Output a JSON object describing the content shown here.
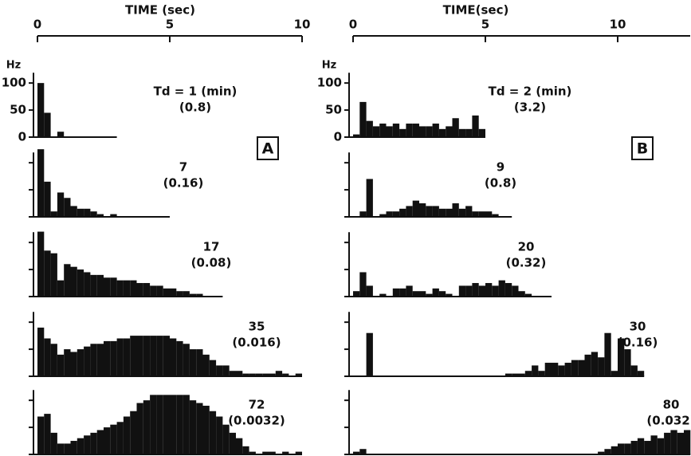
{
  "chart_data": [
    {
      "type": "histogram",
      "panel": "A",
      "xlabel": "TIME (sec)",
      "xlim": [
        0,
        10
      ],
      "xticks": [
        0,
        5,
        10
      ],
      "ylabel": "Hz",
      "ylim": [
        0,
        140
      ],
      "yticks": [
        0,
        50,
        100
      ],
      "color": "#111111",
      "annotation": [
        "Td = 1 (min)",
        "(0.8)"
      ],
      "bins": [
        0,
        0.25,
        0.5,
        0.75,
        1,
        1.25,
        1.5,
        1.75,
        2,
        2.25,
        2.5,
        2.75,
        3
      ],
      "values": [
        100,
        45,
        0,
        10,
        0,
        0,
        0,
        0,
        0,
        0,
        0,
        0
      ]
    },
    {
      "type": "histogram",
      "ylim": [
        0,
        140
      ],
      "color": "#111111",
      "annotation": [
        "7",
        "(0.16)"
      ],
      "bins": [
        0,
        0.25,
        0.5,
        0.75,
        1,
        1.25,
        1.5,
        1.75,
        2,
        2.25,
        2.5,
        2.75,
        3,
        3.25,
        3.5,
        3.75,
        4,
        4.25,
        4.5,
        4.75,
        5
      ],
      "values": [
        125,
        65,
        10,
        45,
        35,
        20,
        15,
        15,
        10,
        5,
        0,
        5,
        0,
        0,
        0,
        0,
        0,
        0,
        0,
        0
      ]
    },
    {
      "type": "histogram",
      "ylim": [
        0,
        140
      ],
      "color": "#111111",
      "annotation": [
        "17",
        "(0.08)"
      ],
      "bins": [
        0,
        0.25,
        0.5,
        0.75,
        1,
        1.25,
        1.5,
        1.75,
        2,
        2.25,
        2.5,
        2.75,
        3,
        3.25,
        3.5,
        3.75,
        4,
        4.25,
        4.5,
        4.75,
        5,
        5.25,
        5.5,
        5.75,
        6,
        6.25,
        6.5,
        6.75,
        7
      ],
      "values": [
        120,
        85,
        80,
        30,
        60,
        55,
        50,
        45,
        40,
        40,
        35,
        35,
        30,
        30,
        30,
        25,
        25,
        20,
        20,
        15,
        15,
        10,
        10,
        5,
        5,
        0,
        0,
        0
      ]
    },
    {
      "type": "histogram",
      "ylim": [
        0,
        140
      ],
      "color": "#111111",
      "annotation": [
        "35",
        "(0.016)"
      ],
      "bins": [
        0,
        0.25,
        0.5,
        0.75,
        1,
        1.25,
        1.5,
        1.75,
        2,
        2.25,
        2.5,
        2.75,
        3,
        3.25,
        3.5,
        3.75,
        4,
        4.25,
        4.5,
        4.75,
        5,
        5.25,
        5.5,
        5.75,
        6,
        6.25,
        6.5,
        6.75,
        7,
        7.25,
        7.5,
        7.75,
        8,
        8.25,
        8.5,
        8.75,
        9,
        9.25,
        9.5,
        9.75,
        10
      ],
      "values": [
        90,
        70,
        60,
        40,
        50,
        45,
        50,
        55,
        60,
        60,
        65,
        65,
        70,
        70,
        75,
        75,
        75,
        75,
        75,
        75,
        70,
        65,
        60,
        50,
        50,
        40,
        30,
        20,
        20,
        10,
        10,
        5,
        5,
        5,
        5,
        5,
        10,
        5,
        0,
        5
      ]
    },
    {
      "type": "histogram",
      "ylim": [
        0,
        140
      ],
      "color": "#111111",
      "annotation": [
        "72",
        "(0.0032)"
      ],
      "bins": [
        0,
        0.25,
        0.5,
        0.75,
        1,
        1.25,
        1.5,
        1.75,
        2,
        2.25,
        2.5,
        2.75,
        3,
        3.25,
        3.5,
        3.75,
        4,
        4.25,
        4.5,
        4.75,
        5,
        5.25,
        5.5,
        5.75,
        6,
        6.25,
        6.5,
        6.75,
        7,
        7.25,
        7.5,
        7.75,
        8,
        8.25,
        8.5,
        8.75,
        9,
        9.25,
        9.5,
        9.75,
        10
      ],
      "values": [
        70,
        75,
        40,
        20,
        20,
        25,
        30,
        35,
        40,
        45,
        50,
        55,
        60,
        70,
        80,
        95,
        100,
        110,
        110,
        110,
        110,
        110,
        110,
        100,
        95,
        90,
        80,
        70,
        55,
        40,
        30,
        15,
        5,
        0,
        5,
        5,
        0,
        5,
        0,
        5
      ]
    },
    {
      "type": "histogram",
      "panel": "B",
      "xlabel": "TIME(sec)",
      "xlim": [
        0,
        12.75
      ],
      "xticks": [
        0,
        5,
        10
      ],
      "ylabel": "Hz",
      "ylim": [
        0,
        140
      ],
      "yticks": [
        0,
        50,
        100
      ],
      "color": "#111111",
      "annotation": [
        "Td = 2 (min)",
        "(3.2)"
      ],
      "bins": [
        0,
        0.25,
        0.5,
        0.75,
        1,
        1.25,
        1.5,
        1.75,
        2,
        2.25,
        2.5,
        2.75,
        3,
        3.25,
        3.5,
        3.75,
        4,
        4.25,
        4.5,
        4.75,
        5
      ],
      "values": [
        5,
        65,
        30,
        20,
        25,
        20,
        25,
        15,
        25,
        25,
        20,
        20,
        25,
        15,
        20,
        35,
        15,
        15,
        40,
        15
      ]
    },
    {
      "type": "histogram",
      "ylim": [
        0,
        140
      ],
      "color": "#111111",
      "annotation": [
        "9",
        "(0.8)"
      ],
      "bins": [
        0,
        0.25,
        0.5,
        0.75,
        1,
        1.25,
        1.5,
        1.75,
        2,
        2.25,
        2.5,
        2.75,
        3,
        3.25,
        3.5,
        3.75,
        4,
        4.25,
        4.5,
        4.75,
        5,
        5.25,
        5.5,
        5.75,
        6
      ],
      "values": [
        0,
        10,
        70,
        0,
        5,
        10,
        10,
        15,
        20,
        30,
        25,
        20,
        20,
        15,
        15,
        25,
        15,
        20,
        10,
        10,
        10,
        5,
        0,
        0
      ]
    },
    {
      "type": "histogram",
      "ylim": [
        0,
        140
      ],
      "color": "#111111",
      "annotation": [
        "20",
        "(0.32)"
      ],
      "bins": [
        0,
        0.25,
        0.5,
        0.75,
        1,
        1.25,
        1.5,
        1.75,
        2,
        2.25,
        2.5,
        2.75,
        3,
        3.25,
        3.5,
        3.75,
        4,
        4.25,
        4.5,
        4.75,
        5,
        5.25,
        5.5,
        5.75,
        6,
        6.25,
        6.5,
        6.75,
        7,
        7.25,
        7.5
      ],
      "values": [
        10,
        45,
        20,
        0,
        5,
        0,
        15,
        15,
        20,
        10,
        10,
        5,
        15,
        10,
        5,
        0,
        20,
        20,
        25,
        20,
        25,
        20,
        30,
        25,
        20,
        10,
        5,
        0,
        0,
        0
      ]
    },
    {
      "type": "histogram",
      "ylim": [
        0,
        140
      ],
      "color": "#111111",
      "annotation": [
        "30",
        "(0.16)"
      ],
      "bins": [
        0,
        0.25,
        0.5,
        0.75,
        1,
        1.25,
        1.5,
        1.75,
        2,
        2.25,
        2.5,
        2.75,
        3,
        3.25,
        3.5,
        3.75,
        4,
        4.25,
        4.5,
        4.75,
        5,
        5.25,
        5.5,
        5.75,
        6,
        6.25,
        6.5,
        6.75,
        7,
        7.25,
        7.5,
        7.75,
        8,
        8.25,
        8.5,
        8.75,
        9,
        9.25,
        9.5,
        9.75,
        10,
        10.25,
        10.5,
        10.75,
        11
      ],
      "values": [
        0,
        0,
        80,
        0,
        0,
        0,
        0,
        0,
        0,
        0,
        0,
        0,
        0,
        0,
        0,
        0,
        0,
        0,
        0,
        0,
        0,
        0,
        0,
        5,
        5,
        5,
        10,
        20,
        10,
        25,
        25,
        20,
        25,
        30,
        30,
        40,
        45,
        35,
        80,
        10,
        70,
        50,
        20,
        10
      ]
    },
    {
      "type": "histogram",
      "ylim": [
        0,
        140
      ],
      "color": "#111111",
      "annotation": [
        "80",
        "(0.032)"
      ],
      "bins": [
        0,
        0.25,
        0.5,
        0.75,
        1,
        1.25,
        1.5,
        1.75,
        2,
        2.25,
        2.5,
        2.75,
        3,
        3.25,
        3.5,
        3.75,
        4,
        4.25,
        4.5,
        4.75,
        5,
        5.25,
        5.5,
        5.75,
        6,
        6.25,
        6.5,
        6.75,
        7,
        7.25,
        7.5,
        7.75,
        8,
        8.25,
        8.5,
        8.75,
        9,
        9.25,
        9.5,
        9.75,
        10,
        10.25,
        10.5,
        10.75,
        11,
        11.25,
        11.5,
        11.75,
        12,
        12.25,
        12.5,
        12.75
      ],
      "values": [
        5,
        10,
        0,
        0,
        0,
        0,
        0,
        0,
        0,
        0,
        0,
        0,
        0,
        0,
        0,
        0,
        0,
        0,
        0,
        0,
        0,
        0,
        0,
        0,
        0,
        0,
        0,
        0,
        0,
        0,
        0,
        0,
        0,
        0,
        0,
        0,
        0,
        5,
        10,
        15,
        20,
        20,
        25,
        30,
        25,
        35,
        30,
        40,
        45,
        40,
        45
      ]
    }
  ]
}
